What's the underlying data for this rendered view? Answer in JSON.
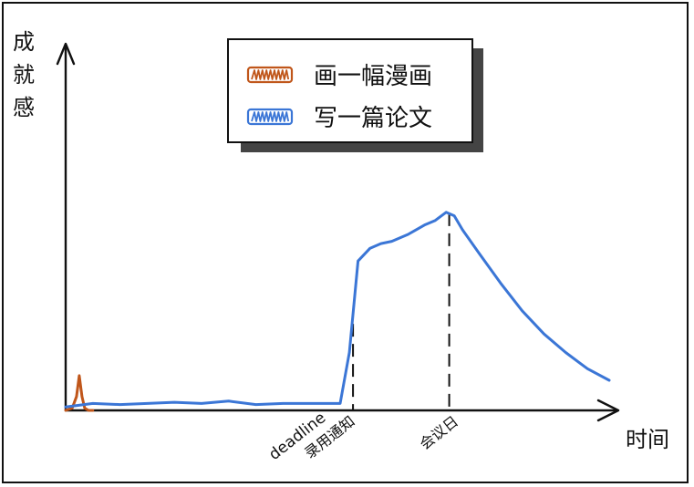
{
  "chart_data": {
    "type": "line",
    "ylabel": "成就感",
    "xlabel": "时间",
    "xlim": [
      0,
      100
    ],
    "ylim": [
      0,
      100
    ],
    "grid": false,
    "legend": {
      "placement": "top-center"
    },
    "colors": {
      "draw_comic": "#c0561a",
      "write_paper": "#3b76d6",
      "axis": "#111111"
    },
    "series": [
      {
        "name": "画一幅漫画",
        "color": "#c0561a",
        "x": [
          0,
          1.2,
          2.0,
          2.5,
          3.0,
          3.5,
          4.2,
          5.0
        ],
        "y": [
          0,
          1,
          6,
          15,
          6,
          1,
          0,
          0
        ]
      },
      {
        "name": "写一篇论文",
        "color": "#3b76d6",
        "x": [
          0,
          5,
          10,
          15,
          20,
          25,
          30,
          35,
          40,
          45,
          50.5,
          52.2,
          53.8,
          56,
          58,
          60,
          63,
          66,
          68,
          70,
          71.5,
          73,
          76,
          80,
          84,
          88,
          92,
          96,
          100
        ],
        "y": [
          1.5,
          3,
          2.5,
          3,
          3.5,
          3,
          4,
          2.5,
          3,
          3,
          3,
          25,
          64.5,
          70,
          72,
          73,
          76,
          80,
          82,
          85.5,
          84,
          78,
          68,
          55,
          43,
          33,
          25,
          18,
          13
        ]
      }
    ],
    "annotations": [
      {
        "x": 52.7,
        "label": "deadline"
      },
      {
        "x": 52.7,
        "label": "录用通知"
      },
      {
        "x": 70.4,
        "label": "会议日"
      }
    ]
  }
}
